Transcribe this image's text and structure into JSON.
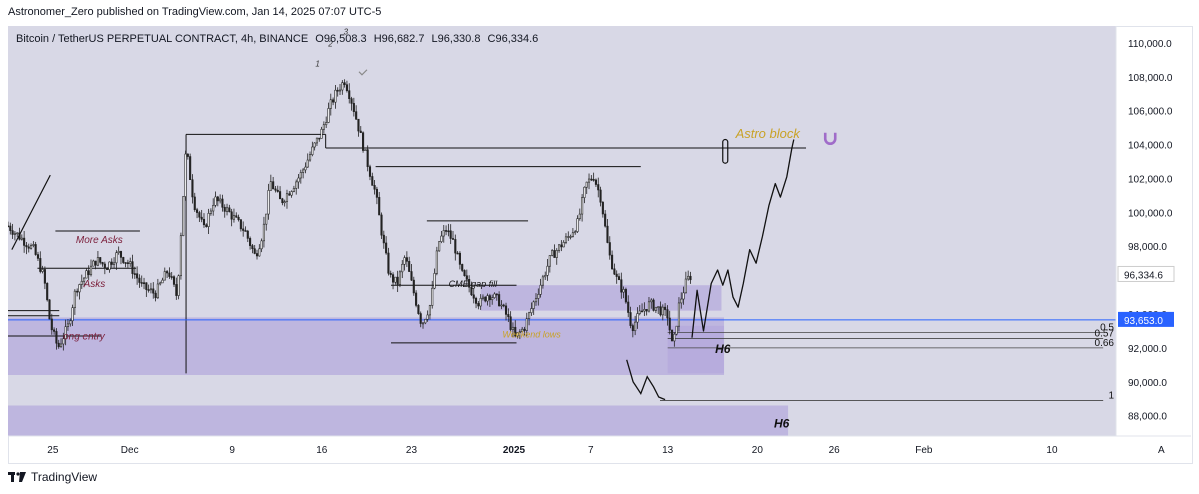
{
  "publisher_line": "Astronomer_Zero published on TradingView.com, Jan 14, 2025 07:07 UTC-5",
  "symbol_line": {
    "symbol": "Bitcoin / TetherUS PERPETUAL CONTRACT, 4h, BINANCE",
    "open": "O96,508.3",
    "high": "H96,682.7",
    "low": "L96,330.8",
    "close": "C96,334.6"
  },
  "footer_brand": "TradingView",
  "colors": {
    "background": "#ffffff",
    "plot_bg": "#d8d8e6",
    "zone": "#b3a8dc",
    "candle": "#222222",
    "price_line": "#2962ff",
    "price_label_bg": "#2962ff",
    "last_label_bg": "#ffffff",
    "annotation_red": "#7b1e3a",
    "annotation_gold": "#c9a227",
    "astro_icon": "#a06cc9"
  },
  "chart_data": {
    "type": "candlestick",
    "timeframe": "4h",
    "ylim": [
      86800,
      111000
    ],
    "y_ticks": [
      "110,000.0",
      "108,000.0",
      "106,000.0",
      "104,000.0",
      "102,000.0",
      "100,000.0",
      "98,000.0",
      "92,000.0",
      "90,000.0",
      "88,000.0"
    ],
    "x_ticks": [
      {
        "label": "25",
        "t": 0
      },
      {
        "label": "Dec",
        "t": 6
      },
      {
        "label": "9",
        "t": 14
      },
      {
        "label": "16",
        "t": 21
      },
      {
        "label": "23",
        "t": 28
      },
      {
        "label": "2025",
        "t": 36
      },
      {
        "label": "7",
        "t": 42
      },
      {
        "label": "13",
        "t": 48
      },
      {
        "label": "20",
        "t": 55
      },
      {
        "label": "26",
        "t": 61
      },
      {
        "label": "Feb",
        "t": 68
      },
      {
        "label": "10",
        "t": 78
      }
    ],
    "x_range": [
      -3.5,
      83
    ],
    "price_path": [
      [
        -3.5,
        99200
      ],
      [
        -2.5,
        98500
      ],
      [
        -1.5,
        97800
      ],
      [
        -0.7,
        96200
      ],
      [
        -0.2,
        93400
      ],
      [
        0.4,
        92000
      ],
      [
        1.2,
        93300
      ],
      [
        1.8,
        95500
      ],
      [
        2.6,
        96300
      ],
      [
        3.4,
        97200
      ],
      [
        4.2,
        96800
      ],
      [
        5.1,
        97600
      ],
      [
        6,
        96900
      ],
      [
        7,
        95600
      ],
      [
        8,
        95200
      ],
      [
        9,
        96600
      ],
      [
        9.7,
        95000
      ],
      [
        10.4,
        103800
      ],
      [
        11,
        100600
      ],
      [
        11.8,
        99000
      ],
      [
        12.6,
        100800
      ],
      [
        13.4,
        100300
      ],
      [
        14.2,
        99600
      ],
      [
        15,
        98900
      ],
      [
        15.8,
        97400
      ],
      [
        16.4,
        98800
      ],
      [
        17,
        101800
      ],
      [
        17.8,
        100600
      ],
      [
        18.6,
        101400
      ],
      [
        19.4,
        102300
      ],
      [
        20.2,
        103600
      ],
      [
        21,
        104800
      ],
      [
        21.6,
        106200
      ],
      [
        22.2,
        107200
      ],
      [
        22.8,
        107800
      ],
      [
        23.4,
        106400
      ],
      [
        24,
        104600
      ],
      [
        24.6,
        102800
      ],
      [
        25.2,
        101100
      ],
      [
        25.8,
        98200
      ],
      [
        26.3,
        96200
      ],
      [
        26.9,
        95800
      ],
      [
        27.5,
        97400
      ],
      [
        28.2,
        95200
      ],
      [
        28.8,
        93400
      ],
      [
        29.5,
        94600
      ],
      [
        30.1,
        98200
      ],
      [
        30.7,
        99000
      ],
      [
        31.3,
        98200
      ],
      [
        31.9,
        96400
      ],
      [
        32.5,
        95600
      ],
      [
        33.3,
        94600
      ],
      [
        34,
        95200
      ],
      [
        34.8,
        94800
      ],
      [
        35.5,
        93800
      ],
      [
        36.1,
        92600
      ],
      [
        36.8,
        93200
      ],
      [
        37.5,
        94600
      ],
      [
        38.2,
        96000
      ],
      [
        38.9,
        97400
      ],
      [
        39.6,
        98000
      ],
      [
        40.3,
        98600
      ],
      [
        41,
        99400
      ],
      [
        41.6,
        101600
      ],
      [
        42.2,
        102200
      ],
      [
        42.8,
        100800
      ],
      [
        43.4,
        97600
      ],
      [
        44,
        96100
      ],
      [
        44.6,
        95200
      ],
      [
        45.2,
        93200
      ],
      [
        45.9,
        94100
      ],
      [
        46.6,
        94600
      ],
      [
        47.3,
        94300
      ],
      [
        48,
        93900
      ],
      [
        48.4,
        91900
      ],
      [
        48.9,
        94600
      ],
      [
        49.5,
        96000
      ],
      [
        49.9,
        96334.6
      ]
    ],
    "projection_path": [
      [
        49.9,
        92600
      ],
      [
        50.3,
        95400
      ],
      [
        50.8,
        93000
      ],
      [
        51.4,
        95800
      ],
      [
        51.9,
        96600
      ],
      [
        52.3,
        95700
      ],
      [
        52.7,
        96600
      ],
      [
        53.1,
        95000
      ],
      [
        53.5,
        94400
      ],
      [
        53.9,
        95800
      ],
      [
        54.4,
        97800
      ],
      [
        54.9,
        97000
      ],
      [
        55.4,
        98600
      ],
      [
        55.9,
        100400
      ],
      [
        56.4,
        101700
      ],
      [
        56.8,
        100900
      ],
      [
        57.3,
        102100
      ],
      [
        57.7,
        103800
      ],
      [
        57.85,
        104300
      ]
    ],
    "hand_drawn_curve": [
      [
        44.8,
        91300
      ],
      [
        45.3,
        90000
      ],
      [
        45.9,
        89300
      ],
      [
        46.4,
        90300
      ],
      [
        46.9,
        89700
      ],
      [
        47.3,
        89100
      ],
      [
        47.8,
        88950
      ]
    ],
    "horizontal_lines": [
      {
        "price": 103800,
        "t0": 21.3,
        "t1": 58.8,
        "kind": "level"
      },
      {
        "price": 104600,
        "t0": 10.4,
        "t1": 21.3,
        "kind": "level"
      },
      {
        "price": 102700,
        "t0": 25.2,
        "t1": 45.9,
        "kind": "level"
      },
      {
        "price": 99500,
        "t0": 29.2,
        "t1": 37.1,
        "kind": "level"
      },
      {
        "price": 98900,
        "t0": 0.2,
        "t1": 6.8,
        "kind": "level"
      },
      {
        "price": 96700,
        "t0": -1.2,
        "t1": 6.5,
        "kind": "level"
      },
      {
        "price": 95700,
        "t0": 26.4,
        "t1": 36.2,
        "kind": "level"
      },
      {
        "price": 92700,
        "t0": -3.5,
        "t1": 3.8,
        "kind": "level"
      },
      {
        "price": 92300,
        "t0": 26.4,
        "t1": 36.2,
        "kind": "level"
      },
      {
        "price": 94200,
        "t0": -3.5,
        "t1": 0.5,
        "kind": "level"
      },
      {
        "price": 93900,
        "t0": -3.5,
        "t1": 0.5,
        "kind": "level"
      },
      {
        "price": 92900,
        "t0": 48.0,
        "t1": 82.0,
        "kind": "fib"
      },
      {
        "price": 92550,
        "t0": 48.0,
        "t1": 82.0,
        "kind": "fib"
      },
      {
        "price": 92000,
        "t0": 48.0,
        "t1": 82.0,
        "kind": "fib"
      },
      {
        "price": 88900,
        "t0": 47.4,
        "t1": 82.0,
        "kind": "fib"
      }
    ],
    "vertical_lines": [
      {
        "t": 10.4,
        "p0": 90500,
        "p1": 104600
      },
      {
        "t": 21.3,
        "p0": 103800,
        "p1": 104600
      }
    ],
    "zones": [
      {
        "label": "",
        "t0": -3.5,
        "t1": 52.4,
        "p_top": 93800,
        "p_bottom": 90400
      },
      {
        "label": "",
        "t0": 33.4,
        "t1": 52.2,
        "p_top": 95700,
        "p_bottom": 94200
      },
      {
        "label": "",
        "t0": -3.5,
        "t1": 57.4,
        "p_top": 88600,
        "p_bottom": 86800
      },
      {
        "label": "",
        "t0": 48.0,
        "t1": 52.4,
        "p_top": 93300,
        "p_bottom": 90500
      }
    ],
    "fib_labels": [
      {
        "text": "0.5",
        "price": 92900
      },
      {
        "text": "0.57",
        "price": 92550
      },
      {
        "text": "0.66",
        "price": 92000
      },
      {
        "text": "1",
        "price": 88900
      }
    ],
    "annotations": [
      {
        "text": "More Asks",
        "t": 1.8,
        "price": 98200,
        "style": "red"
      },
      {
        "text": "Asks",
        "t": 2.4,
        "price": 95600,
        "style": "red"
      },
      {
        "text": "ong entry",
        "t": 0.8,
        "price": 92500,
        "style": "red"
      },
      {
        "text": "CME gap fill",
        "t": 30.9,
        "price": 95600,
        "style": "dark"
      },
      {
        "text": "Weekend lows",
        "t": 35.1,
        "price": 92600,
        "style": "gold"
      },
      {
        "text": "Astro block",
        "t": 53.3,
        "price": 104400,
        "style": "gold-large"
      },
      {
        "text": "H6",
        "t": 51.7,
        "price": 91700,
        "style": "bold"
      },
      {
        "text": "H6",
        "t": 56.3,
        "price": 87300,
        "style": "bold"
      },
      {
        "text": "1",
        "t": 20.5,
        "price": 108600,
        "style": "wave"
      },
      {
        "text": "2",
        "t": 21.5,
        "price": 109800,
        "style": "wave"
      },
      {
        "text": "3",
        "t": 22.7,
        "price": 110500,
        "style": "wave"
      }
    ],
    "current_price": {
      "label": "96,334.6",
      "price": 96334.6
    },
    "blue_line": {
      "label": "93,653.0",
      "price": 93653.0
    },
    "right_axis_partial": "94,000.0"
  }
}
